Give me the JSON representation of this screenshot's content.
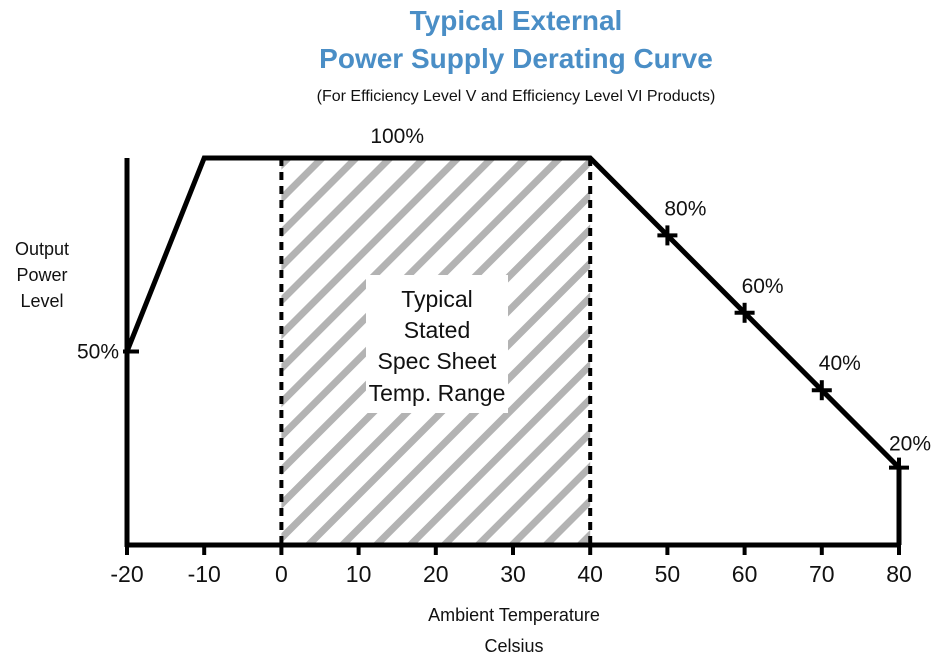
{
  "chart_data": {
    "type": "line",
    "title_lines": [
      "Typical External",
      "Power Supply Derating Curve"
    ],
    "subtitle": "(For Efficiency Level V and Efficiency Level VI Products)",
    "ylabel_lines": [
      "Output",
      "Power",
      "Level"
    ],
    "xlabel_lines": [
      "Ambient Temperature",
      "Celsius"
    ],
    "xlim": [
      -20,
      80
    ],
    "ylim": [
      0,
      100
    ],
    "x_ticks": [
      -20,
      -10,
      0,
      10,
      20,
      30,
      40,
      50,
      60,
      70,
      80
    ],
    "x_tick_labels": [
      "-20",
      "-10",
      "0",
      "10",
      "20",
      "30",
      "40",
      "50",
      "60",
      "70",
      "80"
    ],
    "series": [
      {
        "x": [
          -20,
          -10,
          40,
          50,
          60,
          70,
          80,
          80
        ],
        "y": [
          50,
          100,
          100,
          80,
          60,
          40,
          20,
          0
        ]
      }
    ],
    "data_labels": [
      {
        "x": -20,
        "y": 50,
        "text": "50%"
      },
      {
        "x": 15,
        "y": 100,
        "text": "100%"
      },
      {
        "x": 50,
        "y": 80,
        "text": "80%"
      },
      {
        "x": 60,
        "y": 60,
        "text": "60%"
      },
      {
        "x": 70,
        "y": 40,
        "text": "40%"
      },
      {
        "x": 80,
        "y": 20,
        "text": "20%"
      }
    ],
    "shaded_range": {
      "x_start": 0,
      "x_end": 40,
      "label_lines": [
        "Typical",
        "Stated",
        "Spec Sheet",
        "Temp. Range"
      ]
    },
    "colors": {
      "title": "#4a8ec6",
      "line": "#000000",
      "hatch": "#b3b3b3"
    },
    "grid": false,
    "legend": "none"
  }
}
